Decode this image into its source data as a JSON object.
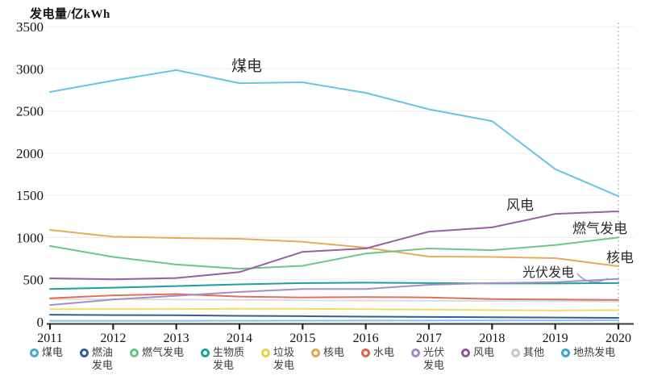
{
  "chart_data": {
    "type": "line",
    "title": "发电量/亿kWh",
    "x": [
      2011,
      2012,
      2013,
      2014,
      2015,
      2016,
      2017,
      2018,
      2019,
      2020
    ],
    "ylim": [
      0,
      3500
    ],
    "ytick_step": 500,
    "yticks": [
      0,
      500,
      1000,
      1500,
      2000,
      2500,
      3000,
      3500
    ],
    "grid": true,
    "legend_position": "bottom",
    "reference_line_x": 2020,
    "series": [
      {
        "name": "煤电",
        "legend_lines": [
          "煤电"
        ],
        "color": "#66c5e0",
        "dot": "#4aa9c5",
        "values": [
          2725,
          2860,
          2985,
          2830,
          2840,
          2715,
          2520,
          2380,
          1810,
          1490
        ]
      },
      {
        "name": "燃油发电",
        "legend_lines": [
          "燃油",
          "发电"
        ],
        "color": "#315f9b",
        "dot": "#315f9b",
        "values": [
          85,
          80,
          78,
          72,
          68,
          62,
          58,
          55,
          52,
          48
        ]
      },
      {
        "name": "燃气发电",
        "legend_lines": [
          "燃气发电"
        ],
        "color": "#68c88c",
        "dot": "#68c88c",
        "values": [
          900,
          770,
          680,
          630,
          665,
          810,
          870,
          850,
          910,
          1000
        ]
      },
      {
        "name": "生物质发电",
        "legend_lines": [
          "生物质",
          "发电"
        ],
        "color": "#1ba39a",
        "dot": "#1ba39a",
        "values": [
          390,
          405,
          425,
          445,
          460,
          465,
          460,
          455,
          455,
          460
        ]
      },
      {
        "name": "垃圾发电",
        "legend_lines": [
          "垃圾",
          "发电"
        ],
        "color": "#ecdf67",
        "dot": "#e3d44f",
        "values": [
          150,
          152,
          152,
          155,
          155,
          150,
          145,
          140,
          135,
          140
        ]
      },
      {
        "name": "核电",
        "legend_lines": [
          "核电"
        ],
        "color": "#e6ab55",
        "dot": "#e0a84f",
        "values": [
          1090,
          1010,
          995,
          985,
          950,
          880,
          775,
          770,
          755,
          660
        ]
      },
      {
        "name": "水电",
        "legend_lines": [
          "水电"
        ],
        "color": "#df705b",
        "dot": "#d9654e",
        "values": [
          280,
          315,
          330,
          300,
          290,
          295,
          290,
          270,
          265,
          260
        ]
      },
      {
        "name": "光伏发电",
        "legend_lines": [
          "光伏",
          "发电"
        ],
        "color": "#a18fca",
        "dot": "#a08cc8",
        "values": [
          200,
          265,
          310,
          355,
          390,
          390,
          440,
          460,
          470,
          510
        ]
      },
      {
        "name": "风电",
        "legend_lines": [
          "风电"
        ],
        "color": "#995fa6",
        "dot": "#8f56a0",
        "values": [
          516,
          505,
          520,
          590,
          830,
          870,
          1070,
          1120,
          1280,
          1310
        ]
      },
      {
        "name": "其他",
        "legend_lines": [
          "其他"
        ],
        "color": "#d4d4d4",
        "dot": "#c9c9c9",
        "values": [
          270,
          268,
          265,
          260,
          255,
          252,
          250,
          248,
          245,
          242
        ]
      },
      {
        "name": "地热发电",
        "legend_lines": [
          "地热发电"
        ],
        "color": "#85c3e6",
        "dot": "#3ea3d4",
        "values": [
          12,
          12,
          12,
          13,
          14,
          15,
          15,
          16,
          16,
          18
        ]
      }
    ],
    "annotations": [
      {
        "text": "煤电",
        "x": 287,
        "y": 88,
        "size": 19
      },
      {
        "text": "风电",
        "x": 628,
        "y": 260,
        "size": 17
      },
      {
        "text": "燃气发电",
        "x": 710,
        "y": 289,
        "size": 17
      },
      {
        "text": "核电",
        "x": 752,
        "y": 325,
        "size": 17
      },
      {
        "text": "光伏发电",
        "x": 648,
        "y": 343,
        "size": 16
      }
    ]
  }
}
